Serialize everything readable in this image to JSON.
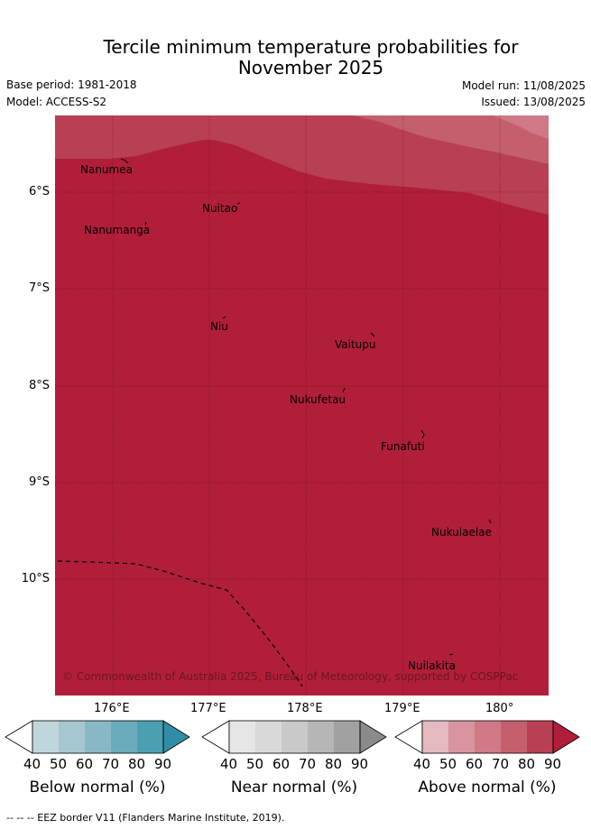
{
  "title_line1": "Tercile minimum temperature probabilities for",
  "title_line2": "November 2025",
  "base_period": "Base period: 1981-2018",
  "model": "Model: ACCESS-S2",
  "model_run": "Model run: 11/08/2025",
  "issued": "Issued: 13/08/2025",
  "lat_labels": [
    "6°S",
    "7°S",
    "8°S",
    "9°S",
    "10°S"
  ],
  "lon_labels": [
    "176°E",
    "177°E",
    "178°E",
    "179°E",
    "180°"
  ],
  "places": [
    "Nanumea",
    "Nuitao",
    "Nanumanga",
    "Niu",
    "Vaitupu",
    "Nukufetau",
    "Funafuti",
    "Nukulaelae",
    "Nuilakita"
  ],
  "copyright": "© Commonwealth of Australia 2025, Bureau of Meteorology, supported by COSPPac",
  "colorbars": [
    {
      "label": "Below normal (%)",
      "ticks": [
        "40",
        "50",
        "60",
        "70",
        "80",
        "90"
      ],
      "colors": [
        "#bfd6dd",
        "#a5c7cf",
        "#88b8c5",
        "#6aabbc",
        "#4b9fb2",
        "#2f8ea6"
      ]
    },
    {
      "label": "Near normal (%)",
      "ticks": [
        "40",
        "50",
        "60",
        "70",
        "80",
        "90"
      ],
      "colors": [
        "#e6e6e6",
        "#d9d9d9",
        "#c9c9c9",
        "#b6b6b6",
        "#a1a1a1",
        "#8b8b8b"
      ]
    },
    {
      "label": "Above normal (%)",
      "ticks": [
        "40",
        "50",
        "60",
        "70",
        "80",
        "90"
      ],
      "colors": [
        "#e4b9c0",
        "#d8959f",
        "#cf7a86",
        "#c4606e",
        "#b93f54",
        "#b01e3a"
      ]
    }
  ],
  "footnote": "--  --  -- EEZ border V11 (Flanders Marine Institute, 2019)."
}
